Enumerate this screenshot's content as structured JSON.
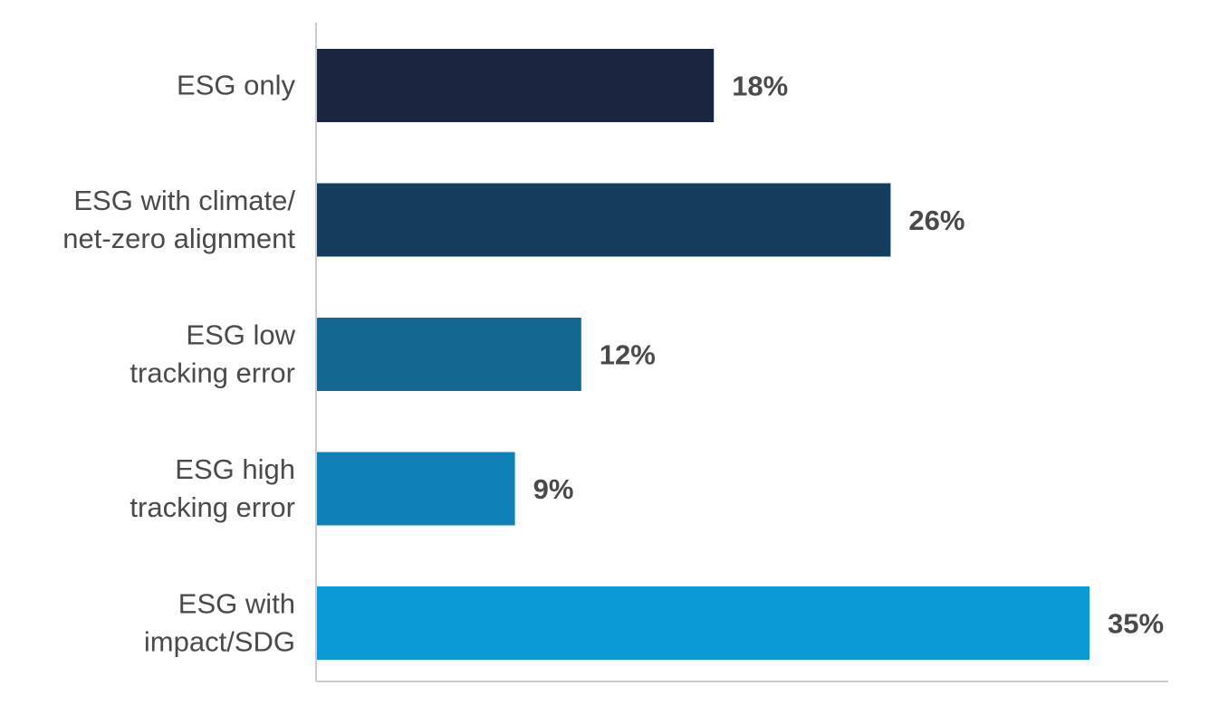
{
  "chart_data": {
    "type": "bar",
    "orientation": "horizontal",
    "title": "",
    "xlabel": "",
    "ylabel": "",
    "xlim": [
      0,
      40
    ],
    "grid": false,
    "legend": "none",
    "categories": [
      [
        "ESG only"
      ],
      [
        "ESG with climate/",
        "net-zero alignment"
      ],
      [
        "ESG low",
        "tracking error"
      ],
      [
        "ESG high",
        "tracking error"
      ],
      [
        "ESG with",
        "impact/SDG"
      ]
    ],
    "values": [
      18,
      26,
      12,
      9,
      35
    ],
    "value_labels": [
      "18%",
      "26%",
      "12%",
      "9%",
      "35%"
    ],
    "colors": [
      "#1a263f",
      "#153d5e",
      "#12668f",
      "#0f80b6",
      "#0a9ad6"
    ],
    "axis_color": "#cccccc"
  }
}
